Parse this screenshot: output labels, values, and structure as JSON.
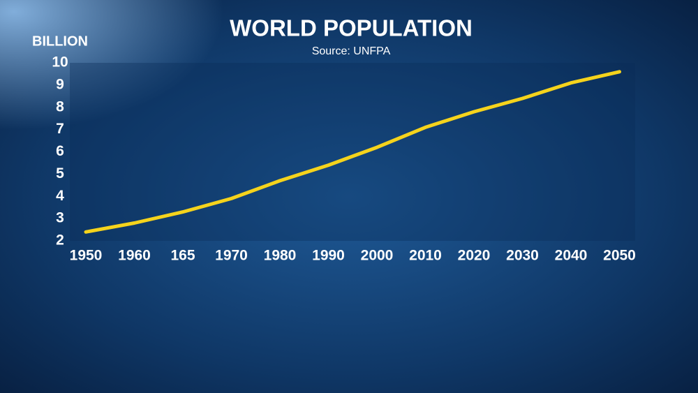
{
  "chart_data": {
    "type": "line",
    "title": "WORLD POPULATION",
    "subtitle": "Source: UNFPA",
    "y_label": "BILLION",
    "categories": [
      "1950",
      "1960",
      "165",
      "1970",
      "1980",
      "1990",
      "2000",
      "2010",
      "2020",
      "2030",
      "2040",
      "2050"
    ],
    "series": [
      {
        "name": "World population",
        "color": "#f5d31c",
        "values": [
          2.4,
          2.8,
          3.3,
          3.9,
          4.7,
          5.4,
          6.2,
          7.1,
          7.8,
          8.4,
          9.1,
          9.6
        ]
      }
    ],
    "ylim": [
      2,
      10
    ],
    "yticks": [
      2,
      3,
      4,
      5,
      6,
      7,
      8,
      9,
      10
    ],
    "grid": false
  }
}
